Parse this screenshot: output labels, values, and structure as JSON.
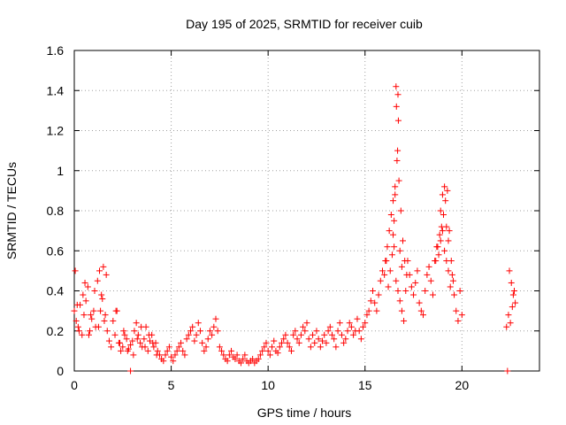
{
  "chart_data": {
    "type": "scatter",
    "title": "Day 195 of 2025, SRMTID for receiver cuib",
    "xlabel": "GPS time / hours",
    "ylabel": "SRMTID / TECUs",
    "xlim": [
      0,
      24
    ],
    "ylim": [
      0,
      1.6
    ],
    "xticks": [
      0,
      5,
      10,
      15,
      20
    ],
    "yticks": [
      0,
      0.2,
      0.4,
      0.6,
      0.8,
      1,
      1.2,
      1.4,
      1.6
    ],
    "xtick_labels": [
      "0",
      "5",
      "10",
      "15",
      "20"
    ],
    "ytick_labels": [
      "0",
      "0.2",
      "0.4",
      "0.6",
      "0.8",
      "1",
      "1.2",
      "1.4",
      "1.6"
    ],
    "grid": true,
    "marker": "+",
    "color": "#ff0000",
    "series": [
      {
        "name": "SRMTID",
        "x": [
          0.0,
          0.1,
          0.2,
          0.3,
          0.4,
          0.5,
          0.6,
          0.7,
          0.8,
          0.9,
          1.0,
          1.1,
          1.2,
          1.3,
          1.4,
          1.5,
          1.6,
          1.7,
          1.8,
          1.9,
          2.0,
          2.1,
          2.2,
          2.3,
          2.4,
          2.5,
          2.6,
          2.7,
          2.8,
          2.9,
          3.0,
          3.1,
          3.2,
          3.3,
          3.4,
          3.5,
          3.6,
          3.7,
          3.8,
          3.9,
          4.0,
          4.1,
          4.2,
          4.3,
          4.4,
          4.5,
          4.6,
          4.7,
          4.8,
          4.9,
          5.0,
          5.1,
          5.2,
          5.3,
          5.4,
          5.5,
          5.6,
          5.7,
          5.8,
          5.9,
          6.0,
          6.1,
          6.2,
          6.3,
          6.4,
          6.5,
          6.6,
          6.7,
          6.8,
          6.9,
          7.0,
          7.1,
          7.2,
          7.3,
          7.4,
          7.5,
          7.6,
          7.7,
          7.8,
          7.9,
          8.0,
          8.1,
          8.2,
          8.3,
          8.4,
          8.5,
          8.6,
          8.7,
          8.8,
          8.9,
          9.0,
          9.1,
          9.2,
          9.3,
          9.4,
          9.5,
          9.6,
          9.7,
          9.8,
          9.9,
          10.0,
          10.1,
          10.2,
          10.3,
          10.4,
          10.5,
          10.6,
          10.7,
          10.8,
          10.9,
          11.0,
          11.1,
          11.2,
          11.3,
          11.4,
          11.5,
          11.6,
          11.7,
          11.8,
          11.9,
          12.0,
          12.1,
          12.2,
          12.3,
          12.4,
          12.5,
          12.6,
          12.7,
          12.8,
          12.9,
          13.0,
          13.1,
          13.2,
          13.3,
          13.4,
          13.5,
          13.6,
          13.7,
          13.8,
          13.9,
          14.0,
          14.1,
          14.2,
          14.3,
          14.4,
          14.5,
          14.6,
          14.7,
          14.8,
          14.9,
          15.0,
          15.1,
          15.2,
          15.3,
          15.4,
          15.5,
          15.6,
          15.7,
          15.8,
          15.9,
          16.0,
          16.1,
          16.2,
          16.3,
          16.4,
          16.5,
          16.6,
          16.7,
          16.8,
          16.9,
          17.0,
          17.1,
          17.2,
          17.3,
          17.4,
          17.5,
          17.6,
          17.7,
          17.8,
          17.9,
          18.0,
          18.1,
          18.2,
          18.3,
          18.4,
          18.5,
          18.6,
          18.7,
          18.8,
          18.9,
          19.0,
          19.1,
          19.2,
          19.3,
          19.4,
          19.5,
          19.6,
          19.7,
          19.8,
          19.9,
          20.0,
          22.3,
          22.4,
          22.5,
          22.6,
          22.7,
          0.05,
          0.15,
          0.25,
          0.45,
          0.55,
          0.75,
          0.85,
          1.05,
          1.25,
          1.35,
          1.45,
          1.55,
          1.65,
          2.15,
          2.35,
          2.55,
          2.75,
          3.05,
          3.25,
          3.45,
          3.65,
          3.85,
          4.05,
          4.25,
          16.05,
          16.15,
          16.25,
          16.35,
          16.45,
          16.55,
          16.65,
          16.75,
          16.85,
          16.95,
          17.05,
          17.15,
          18.65,
          18.75,
          18.85,
          18.95,
          19.05,
          19.15,
          19.25,
          19.35,
          19.45,
          19.55,
          16.6,
          16.7,
          16.62,
          16.72,
          16.68,
          16.5,
          16.55,
          16.45,
          16.8,
          16.9,
          18.9,
          19.0,
          19.1,
          19.2,
          19.3,
          22.45,
          22.55,
          22.65,
          22.75,
          2.9,
          22.35
        ],
        "y": [
          0.3,
          0.25,
          0.22,
          0.33,
          0.18,
          0.28,
          0.35,
          0.42,
          0.2,
          0.26,
          0.3,
          0.22,
          0.45,
          0.5,
          0.38,
          0.52,
          0.28,
          0.2,
          0.15,
          0.12,
          0.25,
          0.18,
          0.3,
          0.14,
          0.1,
          0.12,
          0.18,
          0.16,
          0.11,
          0.13,
          0.15,
          0.2,
          0.24,
          0.18,
          0.14,
          0.12,
          0.16,
          0.22,
          0.1,
          0.15,
          0.18,
          0.12,
          0.14,
          0.1,
          0.08,
          0.06,
          0.05,
          0.08,
          0.1,
          0.12,
          0.07,
          0.05,
          0.08,
          0.1,
          0.12,
          0.14,
          0.1,
          0.08,
          0.16,
          0.18,
          0.2,
          0.22,
          0.15,
          0.18,
          0.24,
          0.2,
          0.14,
          0.1,
          0.12,
          0.16,
          0.2,
          0.18,
          0.22,
          0.26,
          0.2,
          0.12,
          0.1,
          0.08,
          0.06,
          0.05,
          0.08,
          0.1,
          0.07,
          0.06,
          0.08,
          0.05,
          0.04,
          0.06,
          0.08,
          0.05,
          0.04,
          0.05,
          0.06,
          0.04,
          0.05,
          0.06,
          0.08,
          0.1,
          0.12,
          0.14,
          0.1,
          0.08,
          0.12,
          0.15,
          0.1,
          0.09,
          0.12,
          0.14,
          0.16,
          0.18,
          0.14,
          0.12,
          0.1,
          0.18,
          0.2,
          0.16,
          0.14,
          0.18,
          0.22,
          0.2,
          0.24,
          0.16,
          0.12,
          0.18,
          0.14,
          0.2,
          0.16,
          0.12,
          0.15,
          0.18,
          0.14,
          0.2,
          0.22,
          0.18,
          0.16,
          0.12,
          0.2,
          0.24,
          0.18,
          0.14,
          0.16,
          0.2,
          0.24,
          0.22,
          0.18,
          0.2,
          0.26,
          0.2,
          0.16,
          0.22,
          0.24,
          0.28,
          0.3,
          0.35,
          0.4,
          0.34,
          0.3,
          0.38,
          0.45,
          0.5,
          0.48,
          0.55,
          0.42,
          0.5,
          0.58,
          0.62,
          0.45,
          0.4,
          0.35,
          0.3,
          0.25,
          0.4,
          0.55,
          0.48,
          0.42,
          0.38,
          0.44,
          0.5,
          0.34,
          0.3,
          0.28,
          0.4,
          0.48,
          0.52,
          0.45,
          0.38,
          0.55,
          0.62,
          0.58,
          0.65,
          0.7,
          0.6,
          0.55,
          0.5,
          0.42,
          0.48,
          0.38,
          0.3,
          0.25,
          0.4,
          0.28,
          0.22,
          0.28,
          0.24,
          0.32,
          0.4,
          0.5,
          0.33,
          0.2,
          0.38,
          0.44,
          0.18,
          0.28,
          0.4,
          0.22,
          0.3,
          0.36,
          0.25,
          0.48,
          0.3,
          0.14,
          0.2,
          0.1,
          0.08,
          0.16,
          0.22,
          0.12,
          0.18,
          0.14,
          0.08,
          0.55,
          0.62,
          0.7,
          0.78,
          0.85,
          0.92,
          1.05,
          0.95,
          0.8,
          0.65,
          0.55,
          0.48,
          0.55,
          0.62,
          0.68,
          0.72,
          0.78,
          0.85,
          0.9,
          0.7,
          0.55,
          0.45,
          1.42,
          1.38,
          1.32,
          1.25,
          1.1,
          0.75,
          0.88,
          0.68,
          0.6,
          0.52,
          0.8,
          0.88,
          0.92,
          0.72,
          0.65,
          0.5,
          0.44,
          0.38,
          0.34,
          0.0,
          0.0
        ]
      }
    ]
  }
}
